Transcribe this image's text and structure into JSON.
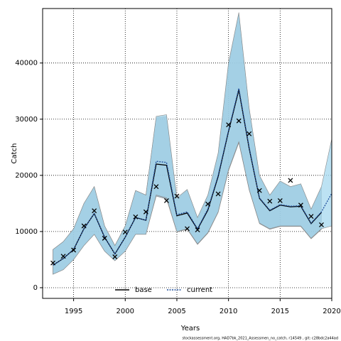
{
  "chart_data": {
    "type": "line",
    "xlabel": "Years",
    "ylabel": "Catch",
    "footnote": "stockassessment.org, HAD7bk_2021_Assessmen_no_catch, r14549 , git: c28bdc2a44ad",
    "x": [
      1993,
      1994,
      1995,
      1996,
      1997,
      1998,
      1999,
      2000,
      2001,
      2002,
      2003,
      2004,
      2005,
      2006,
      2007,
      2008,
      2009,
      2010,
      2011,
      2012,
      2013,
      2014,
      2015,
      2016,
      2017,
      2018,
      2019,
      2020
    ],
    "xlim": [
      1992,
      2020
    ],
    "xticks": [
      1995,
      2000,
      2005,
      2010,
      2015,
      2020
    ],
    "ylim": [
      -1900,
      49700
    ],
    "yticks": [
      0,
      10000,
      20000,
      30000,
      40000
    ],
    "grid": true,
    "legend": "bottom",
    "series": [
      {
        "name": "base",
        "color": "#000000",
        "band_color": "#7f9fb3",
        "values": [
          4000,
          5200,
          6800,
          10500,
          13200,
          9000,
          6000,
          9000,
          12500,
          12000,
          22000,
          21800,
          12800,
          13300,
          10400,
          13800,
          19800,
          27800,
          35200,
          24800,
          15900,
          13700,
          14700,
          14400,
          14500,
          11400,
          13400,
          null
        ],
        "upper": [
          6800,
          8200,
          10500,
          15000,
          18000,
          11000,
          7500,
          11000,
          17300,
          16500,
          30300,
          30500,
          15800,
          17400,
          12400,
          16400,
          23800,
          39700,
          48700,
          31800,
          19900,
          16400,
          18900,
          17900,
          18400,
          13900,
          17900,
          null
        ],
        "lower": [
          2400,
          3200,
          5000,
          7500,
          9500,
          6500,
          4800,
          6500,
          9500,
          9500,
          16300,
          15800,
          9900,
          10400,
          7700,
          9700,
          13400,
          20800,
          25800,
          17400,
          11400,
          10400,
          10900,
          10900,
          10900,
          8700,
          10400,
          null
        ]
      },
      {
        "name": "current",
        "color": "#1f4e9c",
        "band_color": "#a6d8ef",
        "values": [
          4000,
          5200,
          6800,
          10500,
          13200,
          9000,
          6000,
          9000,
          12500,
          12000,
          22500,
          22300,
          13000,
          13500,
          10500,
          14000,
          20000,
          28000,
          35500,
          25000,
          16000,
          13800,
          14800,
          14500,
          14600,
          11500,
          13500,
          16800
        ],
        "upper": [
          6800,
          8200,
          10500,
          15000,
          18000,
          11000,
          7500,
          11000,
          17300,
          16500,
          30500,
          30800,
          16000,
          17500,
          12500,
          16500,
          24000,
          40000,
          49000,
          32000,
          20000,
          16500,
          19000,
          18000,
          18500,
          14000,
          18000,
          26500
        ],
        "lower": [
          2400,
          3200,
          5000,
          7500,
          9500,
          6500,
          4800,
          6500,
          9500,
          9500,
          16500,
          16000,
          10000,
          10500,
          7800,
          9800,
          13500,
          21000,
          26000,
          17500,
          11500,
          10500,
          11000,
          11000,
          11000,
          8800,
          10500,
          11000
        ]
      }
    ],
    "observed": [
      4400,
      5600,
      6700,
      11000,
      13700,
      8800,
      5500,
      9900,
      12600,
      13500,
      18000,
      15500,
      16300,
      10500,
      10300,
      14900,
      16700,
      29000,
      29700,
      27400,
      17300,
      15400,
      15500,
      19100,
      14700,
      12700,
      11200,
      null
    ]
  }
}
